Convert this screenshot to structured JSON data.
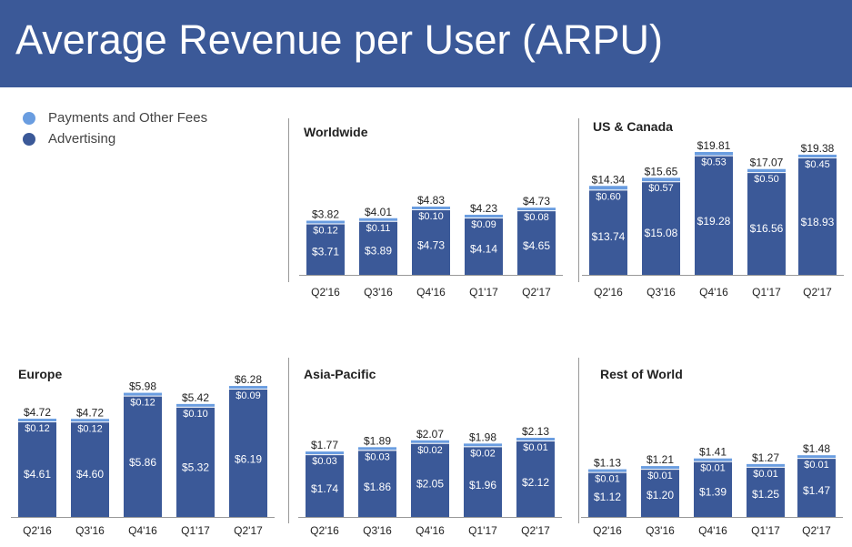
{
  "title": "Average Revenue per User (ARPU)",
  "legend": {
    "items": [
      {
        "label": "Payments and Other Fees",
        "color": "#6a9de0"
      },
      {
        "label": "Advertising",
        "color": "#3b5998"
      }
    ]
  },
  "colors": {
    "header": "#3b5998",
    "advertising": "#3b5998",
    "payments": "#6a9de0"
  },
  "chart_data": [
    {
      "type": "bar",
      "stacked": true,
      "title": "Worldwide",
      "categories": [
        "Q2'16",
        "Q3'16",
        "Q4'16",
        "Q1'17",
        "Q2'17"
      ],
      "series": [
        {
          "name": "Advertising",
          "values": [
            3.71,
            3.89,
            4.73,
            4.14,
            4.65
          ],
          "labels": [
            "$3.71",
            "$3.89",
            "$4.73",
            "$4.14",
            "$4.65"
          ]
        },
        {
          "name": "Payments and Other Fees",
          "values": [
            0.12,
            0.11,
            0.1,
            0.09,
            0.08
          ],
          "labels": [
            "$0.12",
            "$0.11",
            "$0.10",
            "$0.09",
            "$0.08"
          ]
        }
      ],
      "totals": [
        3.82,
        4.01,
        4.83,
        4.23,
        4.73
      ],
      "total_labels": [
        "$3.82",
        "$4.01",
        "$4.83",
        "$4.23",
        "$4.73"
      ],
      "ylim": [
        0,
        6.5
      ]
    },
    {
      "type": "bar",
      "stacked": true,
      "title": "US & Canada",
      "categories": [
        "Q2'16",
        "Q3'16",
        "Q4'16",
        "Q1'17",
        "Q2'17"
      ],
      "series": [
        {
          "name": "Advertising",
          "values": [
            13.74,
            15.08,
            19.28,
            16.56,
            18.93
          ],
          "labels": [
            "$13.74",
            "$15.08",
            "$19.28",
            "$16.56",
            "$18.93"
          ]
        },
        {
          "name": "Payments and Other Fees",
          "values": [
            0.6,
            0.57,
            0.53,
            0.5,
            0.45
          ],
          "labels": [
            "$0.60",
            "$0.57",
            "$0.53",
            "$0.50",
            "$0.45"
          ]
        }
      ],
      "totals": [
        14.34,
        15.65,
        19.81,
        17.07,
        19.38
      ],
      "total_labels": [
        "$14.34",
        "$15.65",
        "$19.81",
        "$17.07",
        "$19.38"
      ],
      "ylim": [
        0,
        19.81
      ]
    },
    {
      "type": "bar",
      "stacked": true,
      "title": "Europe",
      "categories": [
        "Q2'16",
        "Q3'16",
        "Q4'16",
        "Q1'17",
        "Q2'17"
      ],
      "series": [
        {
          "name": "Advertising",
          "values": [
            4.61,
            4.6,
            5.86,
            5.32,
            6.19
          ],
          "labels": [
            "$4.61",
            "$4.60",
            "$5.86",
            "$5.32",
            "$6.19"
          ]
        },
        {
          "name": "Payments and Other Fees",
          "values": [
            0.12,
            0.12,
            0.12,
            0.1,
            0.09
          ],
          "labels": [
            "$0.12",
            "$0.12",
            "$0.12",
            "$0.10",
            "$0.09"
          ]
        }
      ],
      "totals": [
        4.72,
        4.72,
        5.98,
        5.42,
        6.28
      ],
      "total_labels": [
        "$4.72",
        "$4.72",
        "$5.98",
        "$5.42",
        "$6.28"
      ],
      "ylim": [
        0,
        6.28
      ]
    },
    {
      "type": "bar",
      "stacked": true,
      "title": "Asia-Pacific",
      "categories": [
        "Q2'16",
        "Q3'16",
        "Q4'16",
        "Q1'17",
        "Q2'17"
      ],
      "series": [
        {
          "name": "Advertising",
          "values": [
            1.74,
            1.86,
            2.05,
            1.96,
            2.12
          ],
          "labels": [
            "$1.74",
            "$1.86",
            "$2.05",
            "$1.96",
            "$2.12"
          ]
        },
        {
          "name": "Payments and Other Fees",
          "values": [
            0.03,
            0.03,
            0.02,
            0.02,
            0.01
          ],
          "labels": [
            "$0.03",
            "$0.03",
            "$0.02",
            "$0.02",
            "$0.01"
          ]
        }
      ],
      "totals": [
        1.77,
        1.89,
        2.07,
        1.98,
        2.13
      ],
      "total_labels": [
        "$1.77",
        "$1.89",
        "$2.07",
        "$1.98",
        "$2.13"
      ],
      "ylim": [
        0,
        2.6
      ]
    },
    {
      "type": "bar",
      "stacked": true,
      "title": "Rest of World",
      "categories": [
        "Q2'16",
        "Q3'16",
        "Q4'16",
        "Q1'17",
        "Q2'17"
      ],
      "series": [
        {
          "name": "Advertising",
          "values": [
            1.12,
            1.2,
            1.39,
            1.25,
            1.47
          ],
          "labels": [
            "$1.12",
            "$1.20",
            "$1.39",
            "$1.25",
            "$1.47"
          ]
        },
        {
          "name": "Payments and Other Fees",
          "values": [
            0.01,
            0.01,
            0.01,
            0.01,
            0.01
          ],
          "labels": [
            "$0.01",
            "$0.01",
            "$0.01",
            "$0.01",
            "$0.01"
          ]
        }
      ],
      "totals": [
        1.13,
        1.21,
        1.41,
        1.27,
        1.48
      ],
      "total_labels": [
        "$1.13",
        "$1.21",
        "$1.41",
        "$1.27",
        "$1.48"
      ],
      "ylim": [
        0,
        1.95
      ]
    }
  ]
}
